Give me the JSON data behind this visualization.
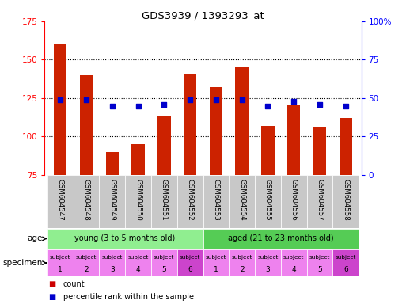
{
  "title": "GDS3939 / 1393293_at",
  "samples": [
    "GSM604547",
    "GSM604548",
    "GSM604549",
    "GSM604550",
    "GSM604551",
    "GSM604552",
    "GSM604553",
    "GSM604554",
    "GSM604555",
    "GSM604556",
    "GSM604557",
    "GSM604558"
  ],
  "count_values": [
    160,
    140,
    90,
    95,
    113,
    141,
    132,
    145,
    107,
    121,
    106,
    112
  ],
  "percentile_values": [
    49,
    49,
    45,
    45,
    46,
    49,
    49,
    49,
    45,
    48,
    46,
    45
  ],
  "ymin": 75,
  "ymax": 175,
  "yticks": [
    75,
    100,
    125,
    150,
    175
  ],
  "y2min": 0,
  "y2max": 100,
  "y2ticks": [
    0,
    25,
    50,
    75,
    100
  ],
  "y2ticklabels": [
    "0",
    "25",
    "50",
    "75",
    "100%"
  ],
  "bar_color": "#cc2200",
  "dot_color": "#0000cc",
  "bar_width": 0.5,
  "background_color": "#ffffff",
  "sample_bg_color": "#c8c8c8",
  "age_young_color": "#90ee90",
  "age_aged_color": "#55cc55",
  "specimen_color_light": "#ee82ee",
  "specimen_color_dark": "#cc44cc",
  "legend_bar_color": "#cc0000",
  "legend_dot_color": "#0000cc"
}
